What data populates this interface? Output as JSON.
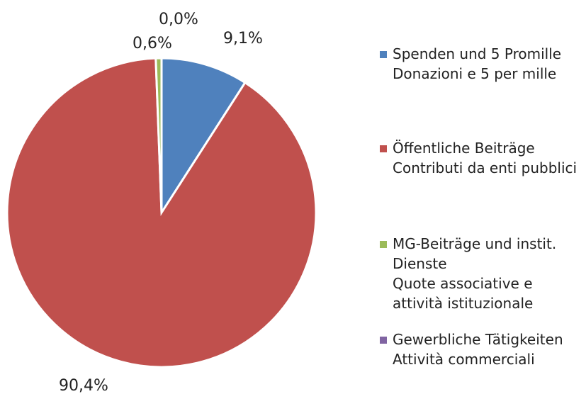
{
  "chart_data": {
    "type": "pie",
    "categories": [
      "Spenden und 5 Promille\nDonazioni e 5 per mille",
      "Öffentliche Beiträge\nContributi da enti pubblici",
      "MG-Beiträge und instit. Dienste\nQuote associative e attività istituzionale",
      "Gewerbliche Tätigkeiten\nAttività commerciali"
    ],
    "values": [
      9.1,
      90.4,
      0.6,
      0.0
    ],
    "value_labels": [
      "9,1%",
      "90,4%",
      "0,6%",
      "0,0%"
    ],
    "colors": [
      "#4f81bd",
      "#c0504d",
      "#9bbb59",
      "#8064a2"
    ],
    "legend": "right"
  }
}
